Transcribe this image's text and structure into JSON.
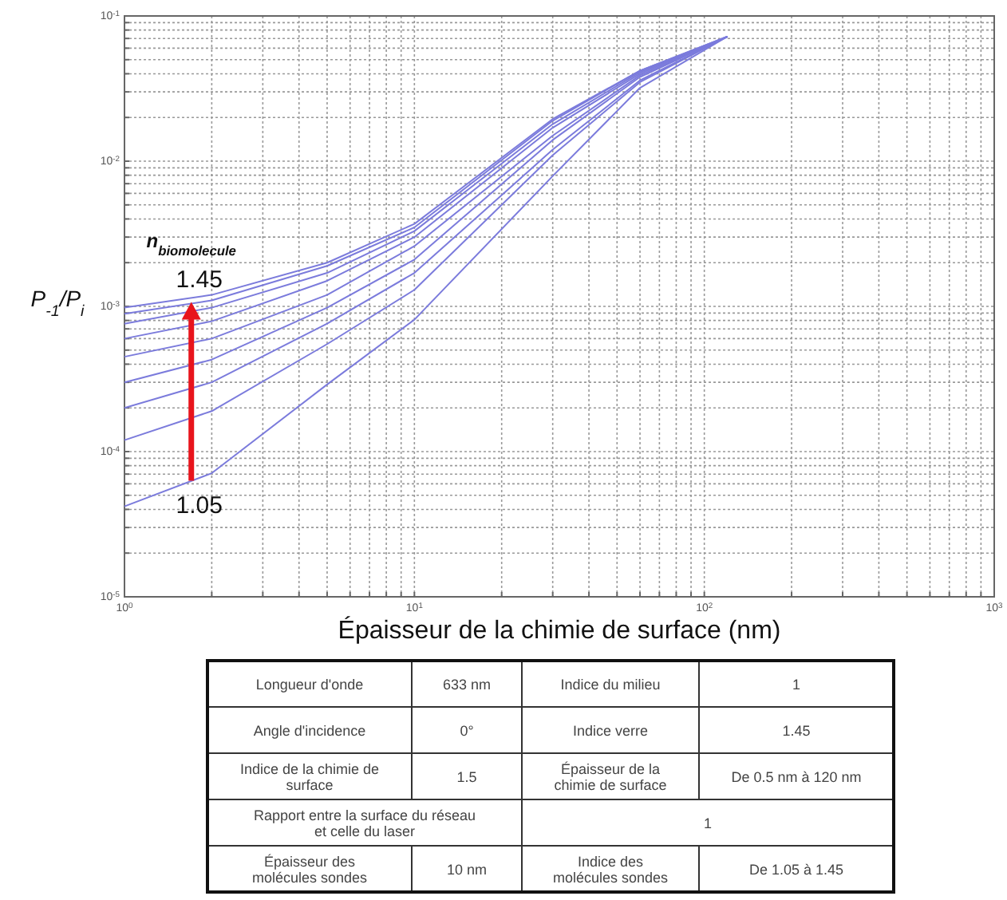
{
  "chart_data": {
    "type": "line",
    "xlabel": "Épaisseur de la chimie de surface (nm)",
    "ylabel": "P$_{-1}$/P$_{i}$",
    "log": "xy",
    "grid": true,
    "line_style": "solid",
    "marker": "none",
    "xlim": [
      1,
      1000
    ],
    "ylim": [
      1e-05,
      0.1
    ],
    "xticks": [
      {
        "value": 1,
        "label": "10$^{0}$"
      },
      {
        "value": 2,
        "label": null
      },
      {
        "value": 3,
        "label": null
      },
      {
        "value": 4,
        "label": null
      },
      {
        "value": 5,
        "label": null
      },
      {
        "value": 6,
        "label": null
      },
      {
        "value": 7,
        "label": null
      },
      {
        "value": 8,
        "label": null
      },
      {
        "value": 9,
        "label": null
      },
      {
        "value": 10,
        "label": "10$^{1}$"
      },
      {
        "value": 20,
        "label": null
      },
      {
        "value": 30,
        "label": null
      },
      {
        "value": 40,
        "label": null
      },
      {
        "value": 50,
        "label": null
      },
      {
        "value": 60,
        "label": null
      },
      {
        "value": 70,
        "label": null
      },
      {
        "value": 80,
        "label": null
      },
      {
        "value": 90,
        "label": null
      },
      {
        "value": 100,
        "label": "10$^{2}$"
      },
      {
        "value": 200,
        "label": null
      },
      {
        "value": 300,
        "label": null
      },
      {
        "value": 400,
        "label": null
      },
      {
        "value": 500,
        "label": null
      },
      {
        "value": 600,
        "label": null
      },
      {
        "value": 700,
        "label": null
      },
      {
        "value": 800,
        "label": null
      },
      {
        "value": 900,
        "label": null
      },
      {
        "value": 1000,
        "label": "10$^{3}$"
      }
    ],
    "yticks": [
      {
        "value": 1e-05,
        "label": "10$^{-5}$"
      },
      {
        "value": 2e-05,
        "label": null
      },
      {
        "value": 3e-05,
        "label": null
      },
      {
        "value": 4e-05,
        "label": null
      },
      {
        "value": 5e-05,
        "label": null
      },
      {
        "value": 6e-05,
        "label": null
      },
      {
        "value": 7e-05,
        "label": null
      },
      {
        "value": 8e-05,
        "label": null
      },
      {
        "value": 9e-05,
        "label": null
      },
      {
        "value": 0.0001,
        "label": "10$^{-4}$"
      },
      {
        "value": 0.0002,
        "label": null
      },
      {
        "value": 0.0003,
        "label": null
      },
      {
        "value": 0.0004,
        "label": null
      },
      {
        "value": 0.0005,
        "label": null
      },
      {
        "value": 0.0006,
        "label": null
      },
      {
        "value": 0.0007,
        "label": null
      },
      {
        "value": 0.0008,
        "label": null
      },
      {
        "value": 0.0009,
        "label": null
      },
      {
        "value": 0.001,
        "label": "10$^{-3}$"
      },
      {
        "value": 0.002,
        "label": null
      },
      {
        "value": 0.003,
        "label": null
      },
      {
        "value": 0.004,
        "label": null
      },
      {
        "value": 0.005,
        "label": null
      },
      {
        "value": 0.006,
        "label": null
      },
      {
        "value": 0.007,
        "label": null
      },
      {
        "value": 0.008,
        "label": null
      },
      {
        "value": 0.009,
        "label": null
      },
      {
        "value": 0.01,
        "label": "10$^{-2}$"
      },
      {
        "value": 0.02,
        "label": null
      },
      {
        "value": 0.03,
        "label": null
      },
      {
        "value": 0.04,
        "label": null
      },
      {
        "value": 0.05,
        "label": null
      },
      {
        "value": 0.06,
        "label": null
      },
      {
        "value": 0.07,
        "label": null
      },
      {
        "value": 0.08,
        "label": null
      },
      {
        "value": 0.09,
        "label": null
      },
      {
        "value": 0.1,
        "label": "10$^{-1}$"
      }
    ],
    "x": [
      1,
      2,
      5,
      10,
      30,
      60,
      120
    ],
    "series": [
      {
        "color": "#7b7bdc",
        "values": [
          4.2e-05,
          7.1e-05,
          0.00029,
          0.00081,
          0.0079,
          0.032,
          0.072
        ]
      },
      {
        "color": "#7b7bdc",
        "values": [
          0.00012,
          0.00019,
          0.00055,
          0.0013,
          0.011,
          0.035,
          0.072
        ]
      },
      {
        "color": "#7b7bdc",
        "values": [
          0.0002,
          0.0003,
          0.00076,
          0.0017,
          0.012,
          0.036,
          0.072
        ]
      },
      {
        "color": "#7b7bdc",
        "values": [
          0.0003,
          0.00043,
          0.00098,
          0.0021,
          0.014,
          0.038,
          0.072
        ]
      },
      {
        "color": "#7b7bdc",
        "values": [
          0.00045,
          0.0006,
          0.0012,
          0.0026,
          0.015,
          0.039,
          0.072
        ]
      },
      {
        "color": "#7b7bdc",
        "values": [
          0.0006,
          0.00079,
          0.0015,
          0.003,
          0.017,
          0.04,
          0.072
        ]
      },
      {
        "color": "#7b7bdc",
        "values": [
          0.00076,
          0.00098,
          0.0017,
          0.0033,
          0.018,
          0.041,
          0.072
        ]
      },
      {
        "color": "#7b7bdc",
        "values": [
          0.00089,
          0.0011,
          0.0019,
          0.0035,
          0.019,
          0.042,
          0.072
        ]
      },
      {
        "color": "#7b7bdc",
        "values": [
          0.00098,
          0.0012,
          0.002,
          0.0037,
          0.0195,
          0.042,
          0.072
        ]
      }
    ],
    "annotations": [
      "n$_{biomolecule}$",
      {
        "text": "1.45",
        "x": 1.7,
        "y": 0.0011
      },
      {
        "text": "1.05",
        "x": 1.7,
        "y": 6.3e-05
      },
      "Longueur d'onde",
      "633 nm",
      "Indice du milieu",
      "1",
      "Angle d'incidence",
      "0°",
      "Indice verre",
      "1.45",
      "Indice de la chimie de surface",
      "1.5",
      "Épaisseur de la chimie de surface",
      "De 0.5 nm à 120 nm",
      "Rapport entre la surface du réseau et celle du laser",
      "1",
      "Épaisseur des molécules sondes",
      "10 nm",
      "Indice des molécules sondes",
      "De 1.05 à 1.45"
    ]
  }
}
